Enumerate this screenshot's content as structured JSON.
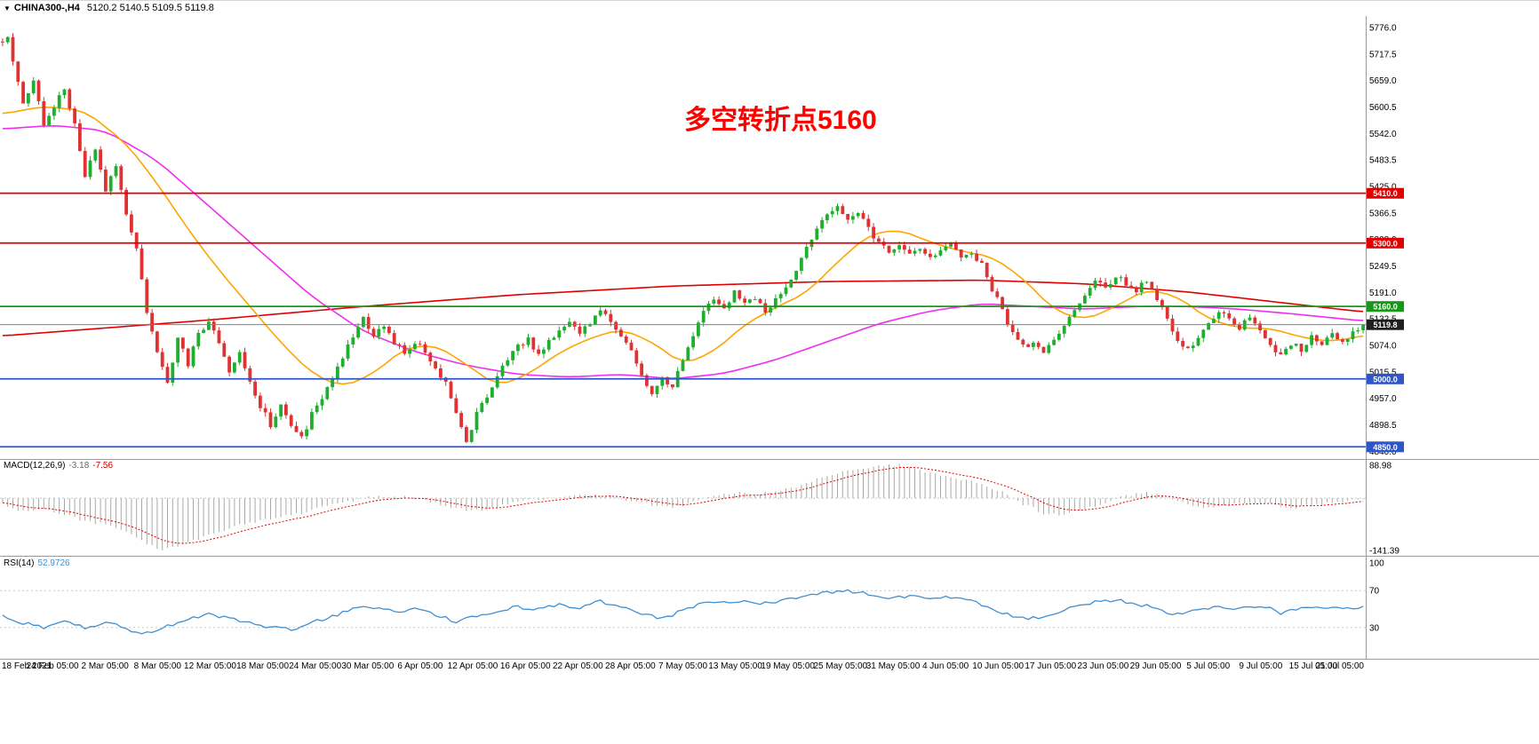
{
  "header": {
    "dropdown_icon": "▼",
    "symbol": "CHINA300-,H4",
    "ohlc": "5120.2 5140.5 5109.5 5119.8"
  },
  "annotation": {
    "text": "多空转折点5160",
    "color": "#ff0000"
  },
  "price_axis": {
    "labels": [
      "5776.0",
      "5717.5",
      "5659.0",
      "5600.5",
      "5542.0",
      "5483.5",
      "5425.0",
      "5366.5",
      "5308.0",
      "5249.5",
      "5191.0",
      "5132.5",
      "5074.0",
      "5015.5",
      "4957.0",
      "4898.5",
      "4840.0"
    ]
  },
  "levels": [
    {
      "label": "5410.0",
      "price": 5410.0,
      "color": "#e00000",
      "width": 1.8
    },
    {
      "label": "5300.0",
      "price": 5300.0,
      "color": "#e00000",
      "width": 1.8
    },
    {
      "label": "5160.0",
      "price": 5160.0,
      "color": "#189818",
      "width": 1.8
    },
    {
      "label": "5119.8",
      "price": 5119.8,
      "color": "#808080",
      "width": 1,
      "tag": "#1f1f1f",
      "current": true
    },
    {
      "label": "5000.0",
      "price": 5000.0,
      "color": "#2f55c8",
      "width": 1.8
    },
    {
      "label": "4850.0",
      "price": 4850.0,
      "color": "#2f55c8",
      "width": 1.8
    }
  ],
  "macd_panel": {
    "name": "MACD(12,26,9)",
    "value_main": "-3.18",
    "value_signal": "-7.56",
    "axis_labels": [
      {
        "v": 88.98,
        "label": "88.98"
      },
      {
        "v": -141.39,
        "label": "-141.39"
      }
    ]
  },
  "rsi_panel": {
    "name": "RSI(14)",
    "value": "52.9726",
    "axis_labels": [
      100,
      70,
      30
    ],
    "dotted_levels": [
      70,
      30
    ]
  },
  "time_axis": {
    "labels": [
      "18 Feb 2021",
      "24 Feb 05:00",
      "2 Mar 05:00",
      "8 Mar 05:00",
      "12 Mar 05:00",
      "18 Mar 05:00",
      "24 Mar 05:00",
      "30 Mar 05:00",
      "6 Apr 05:00",
      "12 Apr 05:00",
      "16 Apr 05:00",
      "22 Apr 05:00",
      "28 Apr 05:00",
      "7 May 05:00",
      "13 May 05:00",
      "19 May 05:00",
      "25 May 05:00",
      "31 May 05:00",
      "4 Jun 05:00",
      "10 Jun 05:00",
      "17 Jun 05:00",
      "23 Jun 05:00",
      "29 Jun 05:00",
      "5 Jul 05:00",
      "9 Jul 05:00",
      "15 Jul 05:00",
      "21 Jul 05:00"
    ],
    "bars_per_label": 10.2
  },
  "chart_data": {
    "type": "candlestick",
    "title": "CHINA300-,H4",
    "bars": 265,
    "last_close": 5119.8,
    "current_bar": {
      "open": 5120.2,
      "high": 5140.5,
      "low": 5109.5,
      "close": 5119.8
    },
    "price_axis_range": [
      4822,
      5801
    ],
    "close_waypoints": [
      [
        0,
        5745
      ],
      [
        1,
        5760
      ],
      [
        2,
        5700
      ],
      [
        4,
        5610
      ],
      [
        6,
        5665
      ],
      [
        8,
        5560
      ],
      [
        10,
        5600
      ],
      [
        12,
        5645
      ],
      [
        14,
        5560
      ],
      [
        16,
        5450
      ],
      [
        18,
        5505
      ],
      [
        20,
        5420
      ],
      [
        22,
        5465
      ],
      [
        24,
        5370
      ],
      [
        26,
        5290
      ],
      [
        28,
        5150
      ],
      [
        30,
        5055
      ],
      [
        32,
        4990
      ],
      [
        34,
        5090
      ],
      [
        36,
        5030
      ],
      [
        38,
        5100
      ],
      [
        40,
        5125
      ],
      [
        42,
        5080
      ],
      [
        44,
        5020
      ],
      [
        46,
        5065
      ],
      [
        48,
        4990
      ],
      [
        50,
        4940
      ],
      [
        52,
        4900
      ],
      [
        54,
        4945
      ],
      [
        56,
        4890
      ],
      [
        58,
        4868
      ],
      [
        60,
        4920
      ],
      [
        62,
        4960
      ],
      [
        64,
        5000
      ],
      [
        66,
        5050
      ],
      [
        68,
        5090
      ],
      [
        70,
        5130
      ],
      [
        72,
        5100
      ],
      [
        74,
        5112
      ],
      [
        76,
        5080
      ],
      [
        78,
        5060
      ],
      [
        80,
        5082
      ],
      [
        82,
        5060
      ],
      [
        84,
        5020
      ],
      [
        86,
        4990
      ],
      [
        88,
        4920
      ],
      [
        90,
        4866
      ],
      [
        92,
        4920
      ],
      [
        94,
        4960
      ],
      [
        96,
        5000
      ],
      [
        98,
        5048
      ],
      [
        100,
        5070
      ],
      [
        102,
        5092
      ],
      [
        104,
        5050
      ],
      [
        106,
        5080
      ],
      [
        108,
        5110
      ],
      [
        110,
        5132
      ],
      [
        112,
        5100
      ],
      [
        114,
        5120
      ],
      [
        116,
        5148
      ],
      [
        118,
        5128
      ],
      [
        120,
        5100
      ],
      [
        122,
        5060
      ],
      [
        124,
        5010
      ],
      [
        126,
        4972
      ],
      [
        128,
        5000
      ],
      [
        130,
        4988
      ],
      [
        132,
        5040
      ],
      [
        134,
        5090
      ],
      [
        136,
        5148
      ],
      [
        138,
        5178
      ],
      [
        140,
        5160
      ],
      [
        142,
        5190
      ],
      [
        144,
        5162
      ],
      [
        146,
        5180
      ],
      [
        148,
        5150
      ],
      [
        150,
        5172
      ],
      [
        152,
        5200
      ],
      [
        154,
        5240
      ],
      [
        156,
        5288
      ],
      [
        158,
        5338
      ],
      [
        160,
        5360
      ],
      [
        162,
        5382
      ],
      [
        164,
        5350
      ],
      [
        166,
        5372
      ],
      [
        168,
        5330
      ],
      [
        170,
        5302
      ],
      [
        172,
        5282
      ],
      [
        174,
        5300
      ],
      [
        176,
        5272
      ],
      [
        178,
        5282
      ],
      [
        180,
        5262
      ],
      [
        182,
        5280
      ],
      [
        184,
        5300
      ],
      [
        186,
        5272
      ],
      [
        188,
        5282
      ],
      [
        190,
        5250
      ],
      [
        192,
        5200
      ],
      [
        194,
        5150
      ],
      [
        196,
        5100
      ],
      [
        198,
        5072
      ],
      [
        200,
        5082
      ],
      [
        202,
        5062
      ],
      [
        204,
        5090
      ],
      [
        206,
        5120
      ],
      [
        208,
        5150
      ],
      [
        210,
        5180
      ],
      [
        212,
        5220
      ],
      [
        214,
        5200
      ],
      [
        216,
        5228
      ],
      [
        218,
        5210
      ],
      [
        220,
        5192
      ],
      [
        222,
        5220
      ],
      [
        224,
        5180
      ],
      [
        226,
        5130
      ],
      [
        228,
        5090
      ],
      [
        230,
        5062
      ],
      [
        232,
        5090
      ],
      [
        234,
        5120
      ],
      [
        236,
        5150
      ],
      [
        238,
        5130
      ],
      [
        240,
        5112
      ],
      [
        242,
        5140
      ],
      [
        244,
        5110
      ],
      [
        246,
        5080
      ],
      [
        248,
        5050
      ],
      [
        250,
        5080
      ],
      [
        252,
        5062
      ],
      [
        254,
        5090
      ],
      [
        256,
        5072
      ],
      [
        258,
        5100
      ],
      [
        260,
        5082
      ],
      [
        262,
        5100
      ],
      [
        264,
        5119.8
      ]
    ],
    "ma_fast_orange": [
      [
        0,
        5585
      ],
      [
        8,
        5602
      ],
      [
        16,
        5592
      ],
      [
        24,
        5520
      ],
      [
        30,
        5432
      ],
      [
        36,
        5330
      ],
      [
        42,
        5240
      ],
      [
        48,
        5160
      ],
      [
        54,
        5080
      ],
      [
        60,
        5012
      ],
      [
        66,
        4982
      ],
      [
        72,
        5012
      ],
      [
        78,
        5068
      ],
      [
        84,
        5075
      ],
      [
        90,
        5032
      ],
      [
        96,
        4984
      ],
      [
        102,
        5010
      ],
      [
        108,
        5058
      ],
      [
        114,
        5090
      ],
      [
        120,
        5110
      ],
      [
        126,
        5082
      ],
      [
        132,
        5032
      ],
      [
        138,
        5060
      ],
      [
        144,
        5120
      ],
      [
        150,
        5158
      ],
      [
        156,
        5190
      ],
      [
        162,
        5258
      ],
      [
        168,
        5318
      ],
      [
        174,
        5330
      ],
      [
        180,
        5302
      ],
      [
        186,
        5282
      ],
      [
        192,
        5270
      ],
      [
        198,
        5222
      ],
      [
        204,
        5152
      ],
      [
        210,
        5130
      ],
      [
        216,
        5160
      ],
      [
        222,
        5198
      ],
      [
        228,
        5182
      ],
      [
        234,
        5132
      ],
      [
        240,
        5112
      ],
      [
        246,
        5112
      ],
      [
        252,
        5092
      ],
      [
        258,
        5082
      ],
      [
        264,
        5096
      ]
    ],
    "ma_mid_magenta": [
      [
        0,
        5552
      ],
      [
        10,
        5560
      ],
      [
        20,
        5548
      ],
      [
        30,
        5482
      ],
      [
        40,
        5382
      ],
      [
        50,
        5282
      ],
      [
        60,
        5182
      ],
      [
        70,
        5105
      ],
      [
        80,
        5060
      ],
      [
        90,
        5030
      ],
      [
        100,
        5010
      ],
      [
        110,
        5004
      ],
      [
        120,
        5010
      ],
      [
        130,
        5000
      ],
      [
        140,
        5012
      ],
      [
        150,
        5042
      ],
      [
        160,
        5082
      ],
      [
        170,
        5122
      ],
      [
        180,
        5150
      ],
      [
        190,
        5166
      ],
      [
        200,
        5160
      ],
      [
        210,
        5154
      ],
      [
        220,
        5160
      ],
      [
        230,
        5160
      ],
      [
        240,
        5154
      ],
      [
        250,
        5144
      ],
      [
        264,
        5128
      ]
    ],
    "ma_slow_red": [
      [
        0,
        5095
      ],
      [
        40,
        5130
      ],
      [
        70,
        5160
      ],
      [
        100,
        5186
      ],
      [
        130,
        5205
      ],
      [
        160,
        5215
      ],
      [
        190,
        5218
      ],
      [
        210,
        5210
      ],
      [
        230,
        5192
      ],
      [
        250,
        5166
      ],
      [
        264,
        5148
      ]
    ],
    "macd_hist_waypoints": [
      [
        0,
        -15
      ],
      [
        4,
        -35
      ],
      [
        8,
        -30
      ],
      [
        12,
        -45
      ],
      [
        16,
        -62
      ],
      [
        20,
        -72
      ],
      [
        24,
        -92
      ],
      [
        28,
        -122
      ],
      [
        31,
        -141
      ],
      [
        34,
        -130
      ],
      [
        38,
        -110
      ],
      [
        42,
        -90
      ],
      [
        46,
        -72
      ],
      [
        50,
        -60
      ],
      [
        54,
        -50
      ],
      [
        58,
        -40
      ],
      [
        62,
        -26
      ],
      [
        66,
        -10
      ],
      [
        70,
        0
      ],
      [
        74,
        6
      ],
      [
        78,
        3
      ],
      [
        82,
        -6
      ],
      [
        86,
        -20
      ],
      [
        90,
        -35
      ],
      [
        94,
        -30
      ],
      [
        98,
        -15
      ],
      [
        102,
        -5
      ],
      [
        106,
        0
      ],
      [
        110,
        8
      ],
      [
        114,
        10
      ],
      [
        118,
        5
      ],
      [
        122,
        -6
      ],
      [
        126,
        -18
      ],
      [
        130,
        -26
      ],
      [
        134,
        -12
      ],
      [
        138,
        5
      ],
      [
        142,
        15
      ],
      [
        146,
        12
      ],
      [
        150,
        16
      ],
      [
        154,
        30
      ],
      [
        158,
        50
      ],
      [
        162,
        70
      ],
      [
        166,
        80
      ],
      [
        170,
        86
      ],
      [
        174,
        89
      ],
      [
        178,
        76
      ],
      [
        182,
        62
      ],
      [
        186,
        50
      ],
      [
        190,
        40
      ],
      [
        194,
        15
      ],
      [
        198,
        -16
      ],
      [
        202,
        -40
      ],
      [
        206,
        -46
      ],
      [
        210,
        -30
      ],
      [
        214,
        -10
      ],
      [
        218,
        5
      ],
      [
        222,
        16
      ],
      [
        226,
        5
      ],
      [
        230,
        -16
      ],
      [
        234,
        -26
      ],
      [
        238,
        -20
      ],
      [
        242,
        -10
      ],
      [
        246,
        -16
      ],
      [
        250,
        -26
      ],
      [
        254,
        -20
      ],
      [
        258,
        -12
      ],
      [
        262,
        -6
      ],
      [
        264,
        -3.18
      ]
    ],
    "macd_last": -3.18,
    "macd_signal_last": -7.56,
    "macd_axis_range": [
      -141.39,
      88.98
    ],
    "rsi_waypoints": [
      [
        0,
        42
      ],
      [
        4,
        35
      ],
      [
        8,
        30
      ],
      [
        12,
        38
      ],
      [
        16,
        30
      ],
      [
        20,
        36
      ],
      [
        24,
        28
      ],
      [
        28,
        24
      ],
      [
        32,
        31
      ],
      [
        36,
        38
      ],
      [
        40,
        45
      ],
      [
        44,
        40
      ],
      [
        48,
        34
      ],
      [
        52,
        30
      ],
      [
        56,
        28
      ],
      [
        60,
        36
      ],
      [
        64,
        42
      ],
      [
        68,
        50
      ],
      [
        72,
        52
      ],
      [
        76,
        48
      ],
      [
        80,
        50
      ],
      [
        84,
        44
      ],
      [
        88,
        36
      ],
      [
        92,
        42
      ],
      [
        96,
        48
      ],
      [
        100,
        52
      ],
      [
        104,
        50
      ],
      [
        108,
        55
      ],
      [
        112,
        52
      ],
      [
        116,
        58
      ],
      [
        120,
        52
      ],
      [
        124,
        44
      ],
      [
        128,
        40
      ],
      [
        132,
        48
      ],
      [
        136,
        56
      ],
      [
        140,
        58
      ],
      [
        144,
        60
      ],
      [
        148,
        56
      ],
      [
        152,
        60
      ],
      [
        156,
        64
      ],
      [
        160,
        68
      ],
      [
        164,
        70
      ],
      [
        168,
        66
      ],
      [
        172,
        62
      ],
      [
        176,
        64
      ],
      [
        180,
        60
      ],
      [
        184,
        63
      ],
      [
        188,
        58
      ],
      [
        192,
        50
      ],
      [
        196,
        42
      ],
      [
        200,
        40
      ],
      [
        204,
        44
      ],
      [
        208,
        52
      ],
      [
        212,
        58
      ],
      [
        216,
        60
      ],
      [
        220,
        56
      ],
      [
        224,
        50
      ],
      [
        228,
        44
      ],
      [
        232,
        48
      ],
      [
        236,
        54
      ],
      [
        240,
        50
      ],
      [
        244,
        54
      ],
      [
        248,
        46
      ],
      [
        252,
        50
      ],
      [
        256,
        52
      ],
      [
        260,
        50
      ],
      [
        264,
        52.97
      ]
    ],
    "rsi_current": 52.9726,
    "rsi_axis_range": [
      0,
      100
    ],
    "colors": {
      "up": "#1faf2e",
      "down": "#e03232",
      "ma_fast": "#ffa500",
      "ma_mid": "#f02df0",
      "ma_slow": "#e00000",
      "macd_hist": "#a8a8a8",
      "macd_signal": "#e00000",
      "rsi_line": "#3f8fd2",
      "grid_dotted": "#c8c8c8",
      "separator": "#9a9a9a"
    }
  }
}
